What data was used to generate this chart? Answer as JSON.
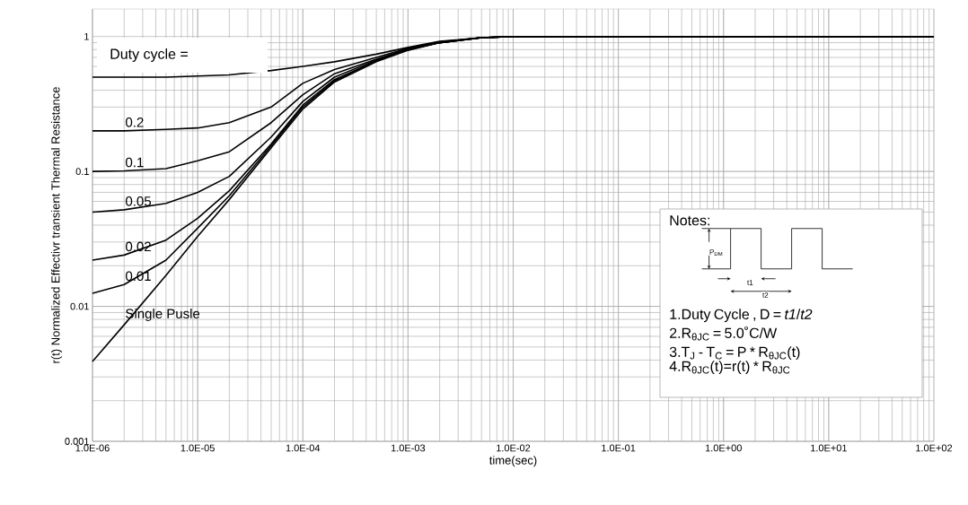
{
  "chart_data": {
    "type": "line",
    "xlabel": "time(sec)",
    "ylabel": "r(t) Normalized Effectivr transient Thermal Resistance",
    "x": [
      1e-06,
      2e-06,
      5e-06,
      1e-05,
      2e-05,
      5e-05,
      0.0001,
      0.0002,
      0.0005,
      0.001,
      0.002,
      0.005,
      0.01,
      100.0
    ],
    "series": [
      {
        "color": "#000000",
        "values": [
          0.5,
          0.5,
          0.5,
          0.51,
          0.52,
          0.56,
          0.6,
          0.65,
          0.74,
          0.83,
          0.92,
          0.98,
          1,
          1
        ]
      },
      {
        "name": "0.2",
        "color": "#000000",
        "values": [
          0.2,
          0.2,
          0.205,
          0.21,
          0.23,
          0.3,
          0.45,
          0.57,
          0.7,
          0.82,
          0.91,
          0.98,
          1,
          1
        ]
      },
      {
        "name": "0.1",
        "color": "#000000",
        "values": [
          0.1,
          0.101,
          0.105,
          0.12,
          0.14,
          0.23,
          0.37,
          0.53,
          0.68,
          0.81,
          0.91,
          0.98,
          1,
          1
        ]
      },
      {
        "name": "0.05",
        "color": "#000000",
        "values": [
          0.05,
          0.052,
          0.058,
          0.07,
          0.092,
          0.18,
          0.33,
          0.5,
          0.67,
          0.8,
          0.9,
          0.98,
          1,
          1
        ]
      },
      {
        "name": "0.02",
        "color": "#000000",
        "values": [
          0.022,
          0.024,
          0.031,
          0.045,
          0.072,
          0.16,
          0.31,
          0.48,
          0.66,
          0.8,
          0.9,
          0.98,
          1,
          1
        ]
      },
      {
        "name": "0.01",
        "color": "#000000",
        "values": [
          0.0125,
          0.0145,
          0.022,
          0.038,
          0.066,
          0.155,
          0.3,
          0.47,
          0.66,
          0.8,
          0.9,
          0.98,
          1,
          1
        ]
      },
      {
        "name": "Single Pusle",
        "color": "#000000",
        "values": [
          0.0039,
          0.0073,
          0.017,
          0.033,
          0.062,
          0.15,
          0.29,
          0.46,
          0.65,
          0.79,
          0.9,
          0.98,
          1,
          1
        ]
      }
    ],
    "legend_title": "Duty cycle =",
    "annotations": [
      "Notes:",
      "P$_{DM}$",
      "t1",
      "t2",
      "1.Duty Cycle , D = *t1*/*t2*",
      "2.R$_{θJC}$ = 5.0˚C/W",
      "3.T$_{J}$  -  T$_{C}$  = P * R$_{θJC}$(t)",
      "4.R$_{θJC}$(t)=r(t) * R$_{θJC}$"
    ],
    "xlim": [
      1e-06,
      100.0
    ],
    "ylim": [
      0.001,
      1.6
    ],
    "xticks": [
      {
        "value": 1e-06,
        "label": "1.0E-06"
      },
      {
        "value": 1e-05,
        "label": "1.0E-05"
      },
      {
        "value": 0.0001,
        "label": "1.0E-04"
      },
      {
        "value": 0.001,
        "label": "1.0E-03"
      },
      {
        "value": 0.01,
        "label": "1.0E-02"
      },
      {
        "value": 0.1,
        "label": "1.0E-01"
      },
      {
        "value": 1,
        "label": "1.0E+00"
      },
      {
        "value": 10,
        "label": "1.0E+01"
      },
      {
        "value": 100,
        "label": "1.0E+02"
      }
    ],
    "yticks": [
      0.001,
      0.01,
      0.1,
      1
    ],
    "log": "xy",
    "grid": true,
    "marker": "none",
    "line_style": "solid"
  }
}
